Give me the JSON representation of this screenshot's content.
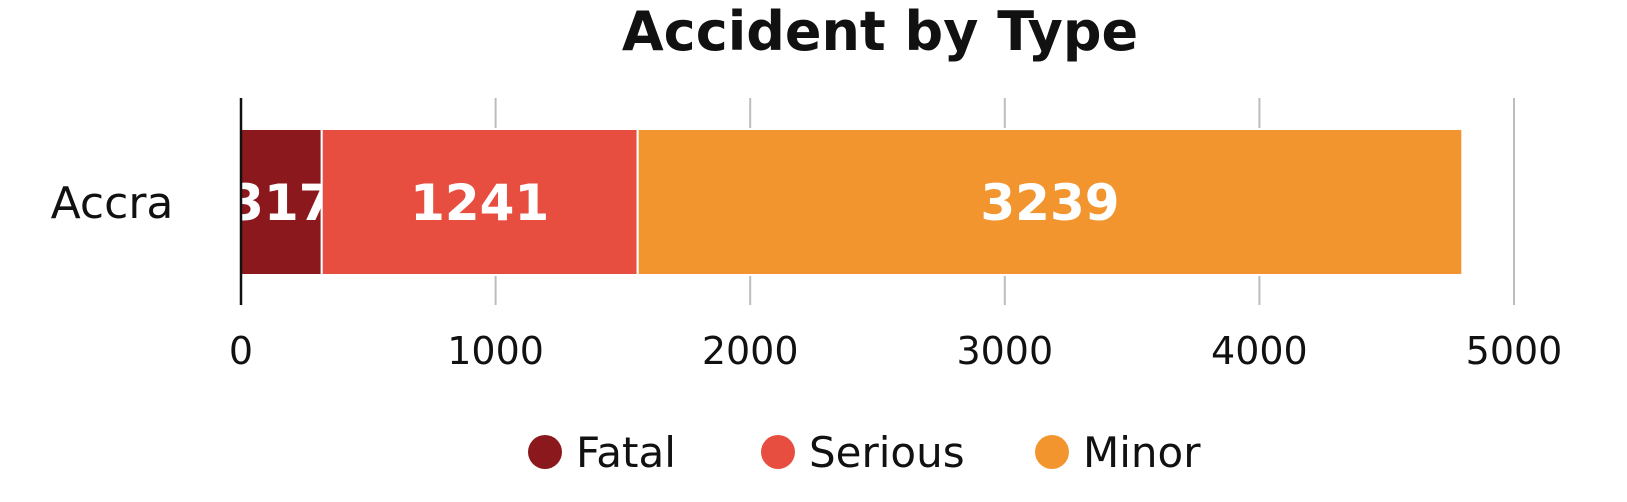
{
  "chart_data": {
    "type": "bar",
    "orientation": "horizontal",
    "stacked": true,
    "title": "Accident by Type",
    "categories": [
      "Accra"
    ],
    "series": [
      {
        "name": "Fatal",
        "values": [
          317
        ],
        "color": "#8b181c"
      },
      {
        "name": "Serious",
        "values": [
          1241
        ],
        "color": "#e84e40"
      },
      {
        "name": "Minor",
        "values": [
          3239
        ],
        "color": "#f2952f"
      }
    ],
    "xlim": [
      0,
      5000
    ],
    "xticks": [
      0,
      1000,
      2000,
      3000,
      4000,
      5000
    ],
    "grid": true,
    "legend": "bottom"
  }
}
